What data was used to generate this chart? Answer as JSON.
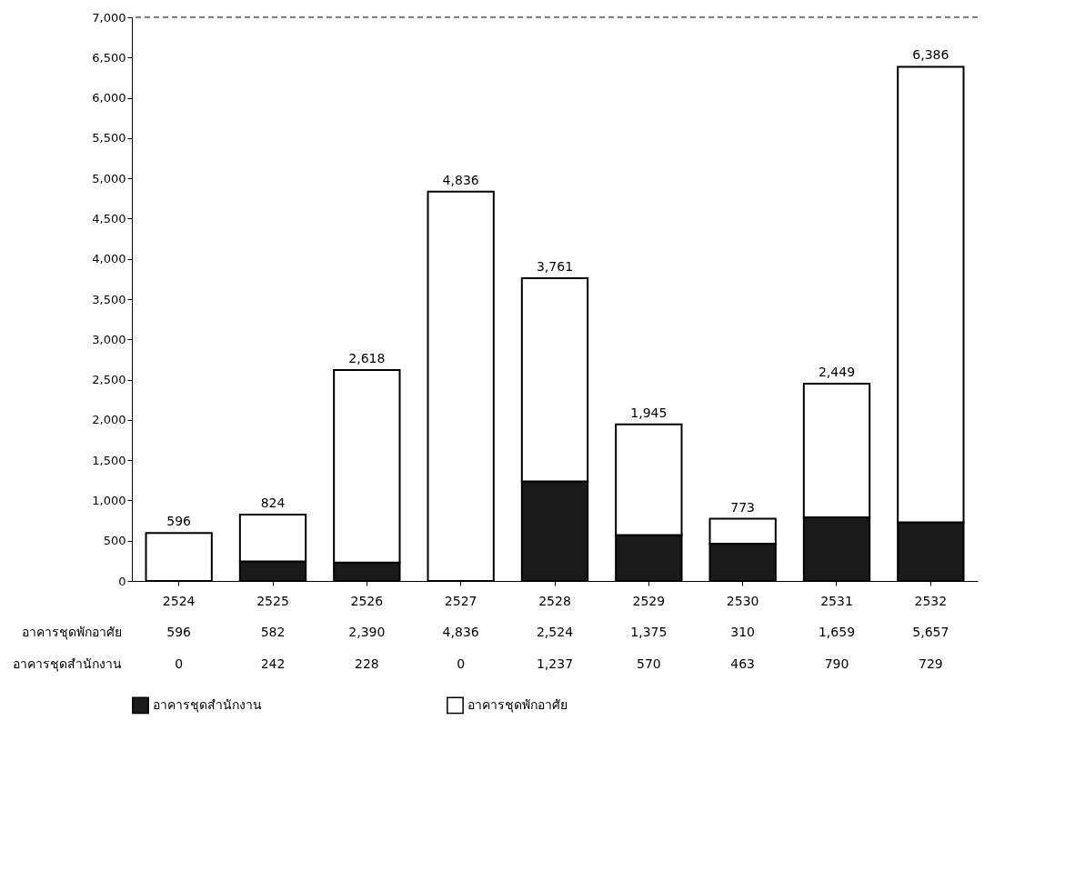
{
  "chart_data": {
    "type": "bar",
    "stacked": true,
    "categories": [
      "2524",
      "2525",
      "2526",
      "2527",
      "2528",
      "2529",
      "2530",
      "2531",
      "2532"
    ],
    "series": [
      {
        "name": "อาคารชุดสำนักงาน",
        "color": "#1a1a1a",
        "values": [
          0,
          242,
          228,
          0,
          1237,
          570,
          463,
          790,
          729
        ],
        "value_labels": [
          "0",
          "242",
          "228",
          "0",
          "1,237",
          "570",
          "463",
          "790",
          "729"
        ]
      },
      {
        "name": "อาคารชุดพักอาศัย",
        "color": "#ffffff",
        "values": [
          596,
          582,
          2390,
          4836,
          2524,
          1375,
          310,
          1659,
          5657
        ],
        "value_labels": [
          "596",
          "582",
          "2,390",
          "4,836",
          "2,524",
          "1,375",
          "310",
          "1,659",
          "5,657"
        ]
      }
    ],
    "totals": [
      "596",
      "824",
      "2,618",
      "4,836",
      "3,761",
      "1,945",
      "773",
      "2,449",
      "6,386"
    ],
    "ylim": [
      0,
      7000
    ],
    "yticks": [
      0,
      500,
      {
        "value": 1000,
        "label": "1,000"
      },
      {
        "value": 1500,
        "label": "1,500"
      },
      {
        "value": 2000,
        "label": "2,000"
      },
      {
        "value": 2500,
        "label": "2,500"
      },
      {
        "value": 3000,
        "label": "3,000"
      },
      {
        "value": 3500,
        "label": "3,500"
      },
      {
        "value": 4000,
        "label": "4,000"
      },
      {
        "value": 4500,
        "label": "4,500"
      },
      {
        "value": 5000,
        "label": "5,000"
      },
      {
        "value": 5500,
        "label": "5,500"
      },
      {
        "value": 6000,
        "label": "6,000"
      },
      {
        "value": 6500,
        "label": "6,500"
      },
      {
        "value": 7000,
        "label": "7,000"
      }
    ],
    "ref_lines": [
      {
        "axis": "y",
        "value": 7000,
        "line_style": "dashed"
      }
    ],
    "grid": false,
    "legend": "bottom"
  }
}
